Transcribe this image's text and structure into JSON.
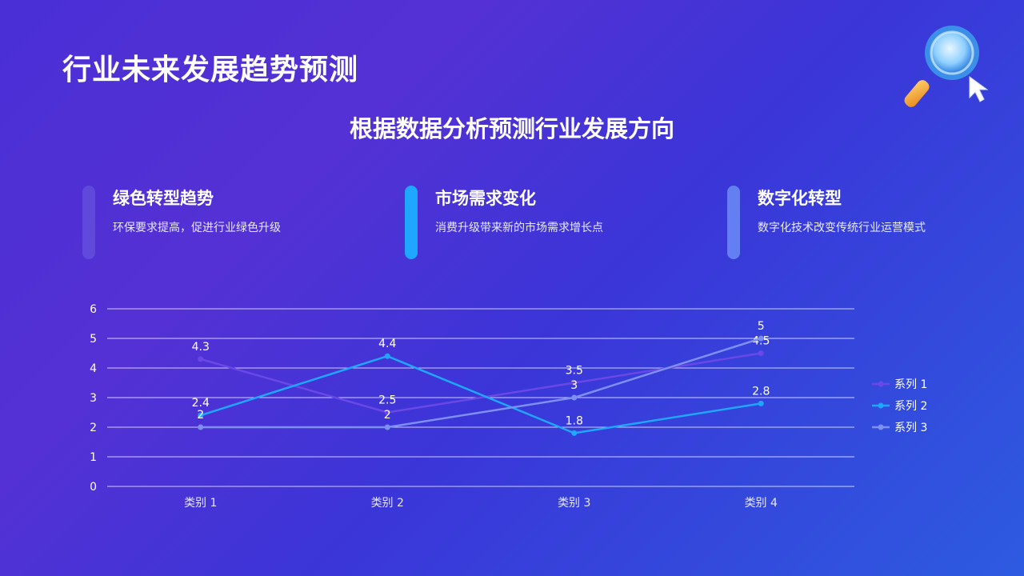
{
  "header": {
    "title": "行业未来发展趋势预测",
    "subtitle": "根据数据分析预测行业发展方向"
  },
  "cards": [
    {
      "title": "绿色转型趋势",
      "desc": "环保要求提高，促进行业绿色升级",
      "color": "#6a5fe0"
    },
    {
      "title": "市场需求变化",
      "desc": "消费升级带来新的市场需求增长点",
      "color": "#1fa6ff"
    },
    {
      "title": "数字化转型",
      "desc": "数字化技术改变传统行业运营模式",
      "color": "#6b8cf5"
    }
  ],
  "icons": {
    "magnifier": "magnifier-icon",
    "cursor": "cursor-icon"
  },
  "chart_data": {
    "type": "line",
    "categories": [
      "类别 1",
      "类别 2",
      "类别 3",
      "类别 4"
    ],
    "series": [
      {
        "name": "系列 1",
        "values": [
          4.3,
          2.5,
          3.5,
          4.5
        ],
        "color": "#6a48e6"
      },
      {
        "name": "系列 2",
        "values": [
          2.4,
          4.4,
          1.8,
          2.8
        ],
        "color": "#1fa6ff"
      },
      {
        "name": "系列 3",
        "values": [
          2,
          2,
          3,
          5
        ],
        "color": "#7e8ff2"
      }
    ],
    "ylim": [
      0,
      6
    ],
    "yticks": [
      0,
      1,
      2,
      3,
      4,
      5,
      6
    ],
    "grid": true,
    "legend": "right",
    "data_labels": true
  }
}
